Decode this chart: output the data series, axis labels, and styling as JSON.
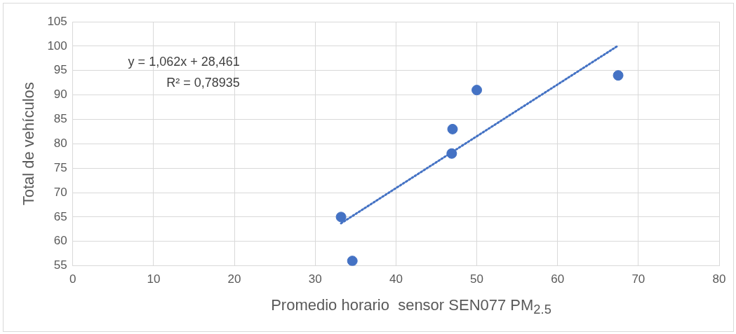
{
  "chart_data": {
    "type": "scatter",
    "xlabel": "Promedio horario  sensor SEN077 PM$_{2.5}$",
    "ylabel": "Total de vehículos",
    "series": [
      {
        "color": "#4472c4",
        "x": [
          33.2,
          34.6,
          47.0,
          46.9,
          50.0,
          67.5
        ],
        "values": [
          65,
          56,
          83,
          78,
          91,
          94
        ],
        "marker": "circle"
      },
      {
        "type": "line",
        "color": "#4472c4",
        "x": [
          33.2,
          67.5
        ],
        "values": [
          63.7,
          100.1
        ],
        "line_style": "dotted",
        "marker": "none"
      }
    ],
    "annotations": [
      "y = 1,062x + 28,461",
      "R² = 0,78935"
    ],
    "xlim": [
      0,
      80
    ],
    "xticks": [
      0,
      10,
      20,
      30,
      40,
      50,
      60,
      70,
      80
    ],
    "ylim": [
      55,
      105
    ],
    "yticks": [
      55,
      60,
      65,
      70,
      75,
      80,
      85,
      90,
      95,
      100,
      105
    ],
    "grid": true,
    "legend": false
  }
}
